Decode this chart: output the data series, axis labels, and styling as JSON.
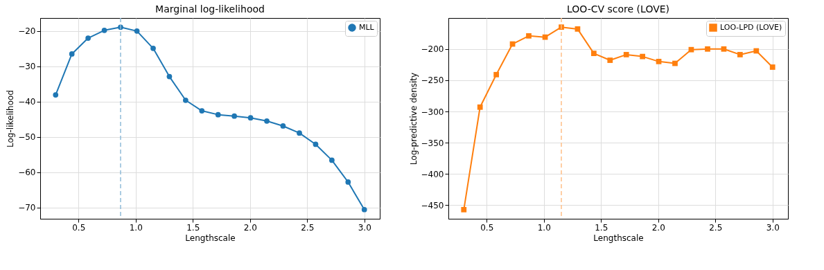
{
  "chart_data": [
    {
      "type": "line",
      "title": "Marginal log-likelihood",
      "xlabel": "Lengthscale",
      "ylabel": "Log-likelihood",
      "x": [
        0.3,
        0.442,
        0.584,
        0.726,
        0.868,
        1.011,
        1.153,
        1.295,
        1.437,
        1.579,
        1.721,
        1.863,
        2.005,
        2.147,
        2.289,
        2.432,
        2.574,
        2.716,
        2.858,
        3.0
      ],
      "series": [
        {
          "name": "MLL",
          "color": "#1f77b4",
          "values": [
            -38.1,
            -26.5,
            -22.0,
            -19.8,
            -18.9,
            -20.0,
            -24.9,
            -32.9,
            -39.6,
            -42.6,
            -43.7,
            -44.1,
            -44.6,
            -45.5,
            -46.9,
            -48.9,
            -52.1,
            -56.6,
            -62.8,
            -70.6
          ]
        }
      ],
      "xlim": [
        0.165,
        3.135
      ],
      "xticks": [
        0.5,
        {
          "value": 1,
          "label": "1.0"
        },
        1.5,
        {
          "value": 2,
          "label": "2.0"
        },
        2.5,
        {
          "value": 3,
          "label": "3.0"
        }
      ],
      "ylim": [
        -73.2,
        -16.3
      ],
      "yticks": [
        -70,
        -60,
        -50,
        -40,
        -30,
        -20
      ],
      "ref_lines": [
        {
          "axis": "x",
          "value": 0.868,
          "color": "#8fbbd9",
          "line_style": "dashed"
        }
      ],
      "grid": true,
      "legend": "top right",
      "marker": "circle",
      "line_style": "solid"
    },
    {
      "type": "line",
      "title": "LOO-CV score (LOVE)",
      "xlabel": "Lengthscale",
      "ylabel": "Log-predictive density",
      "x": [
        0.3,
        0.442,
        0.584,
        0.726,
        0.868,
        1.011,
        1.153,
        1.295,
        1.437,
        1.579,
        1.721,
        1.863,
        2.005,
        2.147,
        2.289,
        2.432,
        2.574,
        2.716,
        2.858,
        3.0
      ],
      "series": [
        {
          "name": "LOO-LPD (LOVE)",
          "color": "#ff7f0e",
          "values": [
            -457,
            -293,
            -241,
            -192,
            -179,
            -181,
            -165,
            -168,
            -207,
            -218,
            -209,
            -212,
            -220,
            -223,
            -201,
            -200,
            -200,
            -209,
            -203,
            -229
          ]
        }
      ],
      "xlim": [
        0.165,
        3.135
      ],
      "xticks": [
        0.5,
        {
          "value": 1,
          "label": "1.0"
        },
        1.5,
        {
          "value": 2,
          "label": "2.0"
        },
        2.5,
        {
          "value": 3,
          "label": "3.0"
        }
      ],
      "ylim": [
        -471.6,
        -150.4
      ],
      "yticks": [
        -450,
        -400,
        -350,
        -300,
        -250,
        -200
      ],
      "ref_lines": [
        {
          "axis": "x",
          "value": 1.153,
          "color": "#ffbf86",
          "line_style": "dashed"
        }
      ],
      "grid": true,
      "legend": "top right",
      "marker": "square",
      "line_style": "solid"
    }
  ]
}
